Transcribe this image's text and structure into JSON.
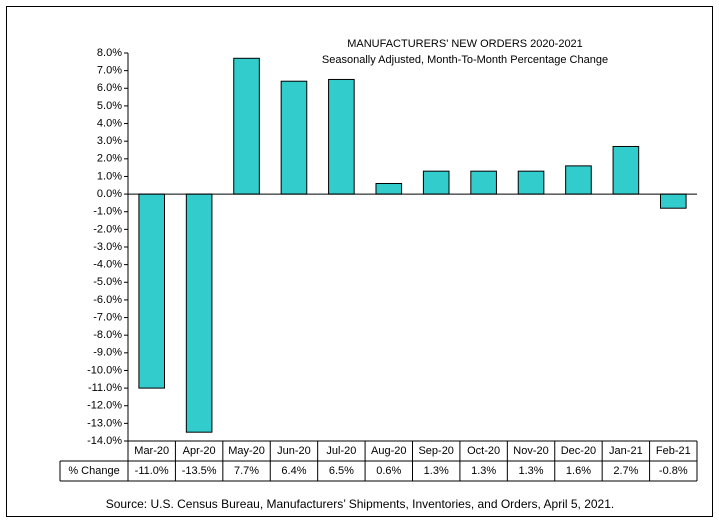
{
  "chart_data": {
    "type": "bar",
    "title": "MANUFACTURERS' NEW ORDERS 2020-2021",
    "subtitle": "Seasonally Adjusted,  Month-To-Month Percentage Change",
    "categories": [
      "Mar-20",
      "Apr-20",
      "May-20",
      "Jun-20",
      "Jul-20",
      "Aug-20",
      "Sep-20",
      "Oct-20",
      "Nov-20",
      "Dec-20",
      "Jan-21",
      "Feb-21"
    ],
    "values": [
      -11.0,
      -13.5,
      7.7,
      6.4,
      6.5,
      0.6,
      1.3,
      1.3,
      1.3,
      1.6,
      2.7,
      -0.8
    ],
    "value_labels": [
      "-11.0%",
      "-13.5%",
      "7.7%",
      "6.4%",
      "6.5%",
      "0.6%",
      "1.3%",
      "1.3%",
      "1.3%",
      "1.6%",
      "2.7%",
      "-0.8%"
    ],
    "row_label": "% Change",
    "color": "#33cccc",
    "ylim": [
      -14,
      8
    ],
    "yticks": [
      {
        "value": 8,
        "label": "8.0%"
      },
      {
        "value": 7,
        "label": "7.0%"
      },
      {
        "value": 6,
        "label": "6.0%"
      },
      {
        "value": 5,
        "label": "5.0%"
      },
      {
        "value": 4,
        "label": "4.0%"
      },
      {
        "value": 3,
        "label": "3.0%"
      },
      {
        "value": 2,
        "label": "2.0%"
      },
      {
        "value": 1,
        "label": "1.0%"
      },
      {
        "value": 0,
        "label": "0.0%"
      },
      {
        "value": -1,
        "label": "-1.0%"
      },
      {
        "value": -2,
        "label": "-2.0%"
      },
      {
        "value": -3,
        "label": "-3.0%"
      },
      {
        "value": -4,
        "label": "-4.0%"
      },
      {
        "value": -5,
        "label": "-5.0%"
      },
      {
        "value": -6,
        "label": "-6.0%"
      },
      {
        "value": -7,
        "label": "-7.0%"
      },
      {
        "value": -8,
        "label": "-8.0%"
      },
      {
        "value": -9,
        "label": "-9.0%"
      },
      {
        "value": -10,
        "label": "-10.0%"
      },
      {
        "value": -11,
        "label": "-11.0%"
      },
      {
        "value": -12,
        "label": "-12.0%"
      },
      {
        "value": -13,
        "label": "-13.0%"
      },
      {
        "value": -14,
        "label": "-14.0%"
      }
    ],
    "source": "Source: U.S. Census Bureau, Manufacturers’ Shipments, Inventories, and Orders, April 5, 2021."
  }
}
